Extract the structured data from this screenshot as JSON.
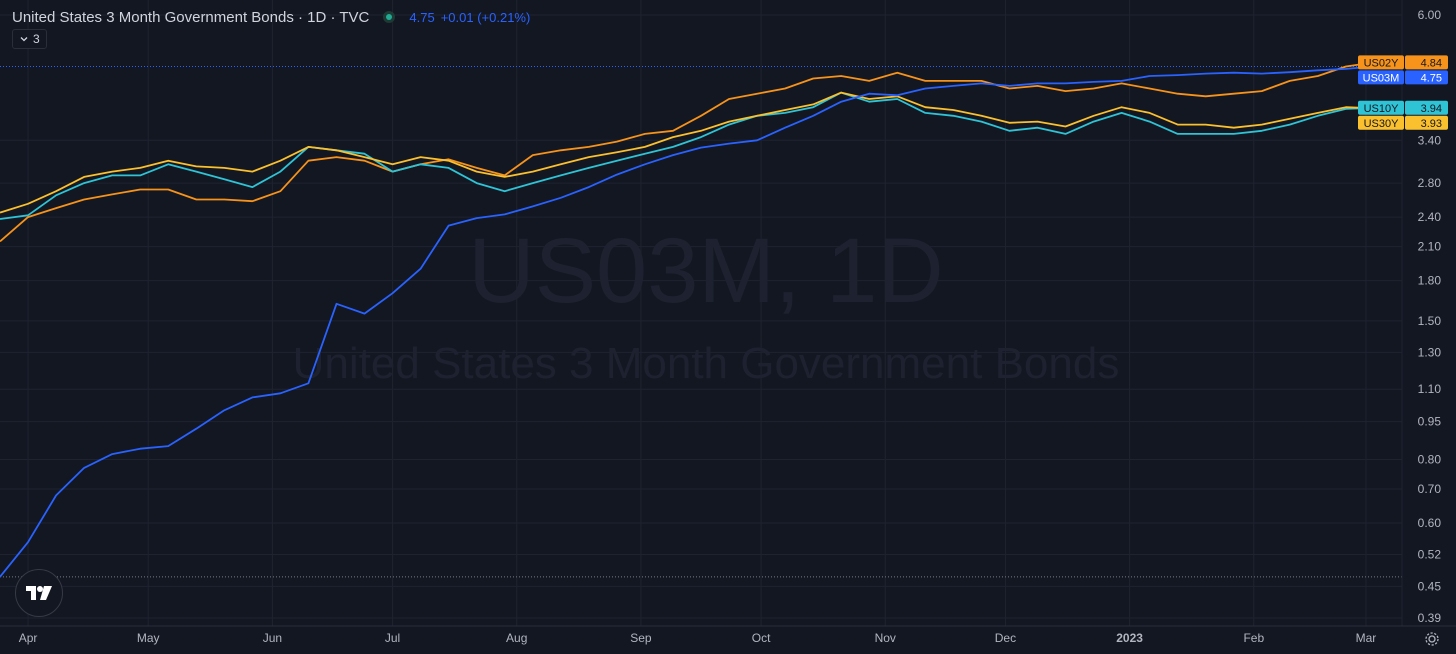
{
  "header": {
    "title": "United States 3 Month Government Bonds · 1D · TVC",
    "value": "4.75",
    "change": "+0.01 (+0.21%)",
    "indicators_count": "3"
  },
  "watermark": {
    "line1": "US03M, 1D",
    "line2": "United States 3 Month Government Bonds"
  },
  "colors": {
    "background": "#131722",
    "grid": "#1f2330",
    "text": "#b2b5be",
    "US03M": "#2962ff",
    "US02Y": "#f7931a",
    "US10Y": "#2ec4d6",
    "US30Y": "#fbc02d"
  },
  "chart_data": {
    "type": "line",
    "scale": "log",
    "ylim": [
      0.39,
      6.0
    ],
    "y_ticks": [
      "6.00",
      "3.40",
      "2.80",
      "2.40",
      "2.10",
      "1.80",
      "1.50",
      "1.30",
      "1.10",
      "0.95",
      "0.80",
      "0.70",
      "0.60",
      "0.52",
      "0.45",
      "0.39"
    ],
    "x_ticks": [
      "Apr",
      "May",
      "Jun",
      "Jul",
      "Aug",
      "Sep",
      "Oct",
      "Nov",
      "Dec",
      "2023",
      "Feb",
      "Mar"
    ],
    "xlim": [
      "2022-03-25",
      "2023-03-10"
    ],
    "x": [
      "2022-03-25",
      "2022-04-01",
      "2022-04-08",
      "2022-04-15",
      "2022-04-22",
      "2022-04-29",
      "2022-05-06",
      "2022-05-13",
      "2022-05-20",
      "2022-05-27",
      "2022-06-03",
      "2022-06-10",
      "2022-06-17",
      "2022-06-24",
      "2022-07-01",
      "2022-07-08",
      "2022-07-15",
      "2022-07-22",
      "2022-07-29",
      "2022-08-05",
      "2022-08-12",
      "2022-08-19",
      "2022-08-26",
      "2022-09-02",
      "2022-09-09",
      "2022-09-16",
      "2022-09-23",
      "2022-09-30",
      "2022-10-07",
      "2022-10-14",
      "2022-10-21",
      "2022-10-28",
      "2022-11-04",
      "2022-11-11",
      "2022-11-18",
      "2022-11-25",
      "2022-12-02",
      "2022-12-09",
      "2022-12-16",
      "2022-12-23",
      "2022-12-30",
      "2023-01-06",
      "2023-01-13",
      "2023-01-20",
      "2023-01-27",
      "2023-02-03",
      "2023-02-10",
      "2023-02-17",
      "2023-02-24",
      "2023-03-03"
    ],
    "series": [
      {
        "name": "US03M",
        "last": "4.75",
        "values": [
          0.47,
          0.55,
          0.68,
          0.77,
          0.82,
          0.84,
          0.85,
          0.92,
          1.0,
          1.06,
          1.08,
          1.13,
          1.62,
          1.55,
          1.7,
          1.9,
          2.31,
          2.39,
          2.43,
          2.52,
          2.62,
          2.75,
          2.91,
          3.05,
          3.18,
          3.29,
          3.35,
          3.4,
          3.6,
          3.8,
          4.05,
          4.2,
          4.17,
          4.3,
          4.35,
          4.4,
          4.35,
          4.4,
          4.4,
          4.43,
          4.45,
          4.55,
          4.57,
          4.6,
          4.62,
          4.6,
          4.63,
          4.67,
          4.7,
          4.75
        ]
      },
      {
        "name": "US02Y",
        "last": "4.84",
        "values": [
          2.15,
          2.4,
          2.5,
          2.6,
          2.66,
          2.72,
          2.72,
          2.6,
          2.6,
          2.58,
          2.7,
          3.1,
          3.15,
          3.1,
          2.95,
          3.05,
          3.12,
          3.0,
          2.9,
          3.18,
          3.25,
          3.3,
          3.38,
          3.5,
          3.55,
          3.8,
          4.1,
          4.2,
          4.3,
          4.5,
          4.55,
          4.45,
          4.62,
          4.45,
          4.45,
          4.45,
          4.3,
          4.35,
          4.25,
          4.3,
          4.4,
          4.3,
          4.2,
          4.15,
          4.2,
          4.25,
          4.45,
          4.55,
          4.75,
          4.84
        ]
      },
      {
        "name": "US10Y",
        "last": "3.94",
        "values": [
          2.38,
          2.42,
          2.65,
          2.8,
          2.9,
          2.9,
          3.05,
          2.95,
          2.85,
          2.75,
          2.95,
          3.3,
          3.25,
          3.2,
          2.95,
          3.05,
          3.0,
          2.8,
          2.7,
          2.8,
          2.9,
          3.0,
          3.1,
          3.2,
          3.3,
          3.45,
          3.65,
          3.8,
          3.85,
          3.95,
          4.22,
          4.05,
          4.1,
          3.85,
          3.8,
          3.7,
          3.55,
          3.6,
          3.5,
          3.7,
          3.85,
          3.7,
          3.5,
          3.5,
          3.5,
          3.55,
          3.65,
          3.8,
          3.92,
          3.94
        ]
      },
      {
        "name": "US30Y",
        "last": "3.93",
        "values": [
          2.45,
          2.55,
          2.7,
          2.88,
          2.95,
          3.0,
          3.1,
          3.02,
          3.0,
          2.95,
          3.1,
          3.3,
          3.25,
          3.15,
          3.05,
          3.15,
          3.1,
          2.95,
          2.88,
          2.95,
          3.05,
          3.15,
          3.22,
          3.3,
          3.45,
          3.55,
          3.7,
          3.8,
          3.9,
          4.0,
          4.22,
          4.1,
          4.15,
          3.95,
          3.9,
          3.8,
          3.68,
          3.7,
          3.62,
          3.8,
          3.95,
          3.85,
          3.65,
          3.65,
          3.6,
          3.65,
          3.75,
          3.85,
          3.95,
          3.93
        ]
      }
    ]
  }
}
